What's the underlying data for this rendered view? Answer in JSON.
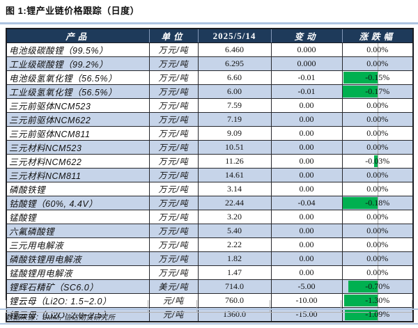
{
  "title": "图 1:锂产业链价格跟踪（日度）",
  "colors": {
    "header_bg": "#1e3a5a",
    "alt_row_blue": "#c6d4e9",
    "negative_bar_green": "#00b050",
    "divider_blue": "#aec4e0",
    "axis_gray": "#a6a6a6"
  },
  "table": {
    "headers": {
      "product": "产品",
      "unit": "单位",
      "date": "2025/5/14",
      "change": "变动",
      "pct": "涨跌幅"
    },
    "rows": [
      {
        "product": "电池级碳酸锂（99.5%）",
        "unit": "万元/吨",
        "price": "6.460",
        "change": "0.000",
        "pct": "0.00%",
        "bar": 0
      },
      {
        "product": "工业级碳酸锂（99.2%）",
        "unit": "万元/吨",
        "price": "6.295",
        "change": "0.000",
        "pct": "0.00%",
        "bar": 0
      },
      {
        "product": "电池级氢氧化锂（56.5%）",
        "unit": "万元/吨",
        "price": "6.60",
        "change": "-0.01",
        "pct": "-0.15%",
        "bar": 0.97
      },
      {
        "product": "工业级氢氧化锂（56.5%）",
        "unit": "万元/吨",
        "price": "6.00",
        "change": "-0.01",
        "pct": "-0.17%",
        "bar": 1
      },
      {
        "product": "三元前驱体NCM523",
        "unit": "万元/吨",
        "price": "7.59",
        "change": "0.00",
        "pct": "0.00%",
        "bar": 0
      },
      {
        "product": "三元前驱体NCM622",
        "unit": "万元/吨",
        "price": "7.19",
        "change": "0.00",
        "pct": "0.00%",
        "bar": 0
      },
      {
        "product": "三元前驱体NCM811",
        "unit": "万元/吨",
        "price": "9.09",
        "change": "0.00",
        "pct": "0.00%",
        "bar": 0
      },
      {
        "product": "三元材料NCM523",
        "unit": "万元/吨",
        "price": "10.51",
        "change": "0.00",
        "pct": "0.00%",
        "bar": 0
      },
      {
        "product": "三元材料NCM622",
        "unit": "万元/吨",
        "price": "11.26",
        "change": "0.00",
        "pct": "-0.03%",
        "bar": 0.09
      },
      {
        "product": "三元材料NCM811",
        "unit": "万元/吨",
        "price": "14.61",
        "change": "0.00",
        "pct": "0.00%",
        "bar": 0
      },
      {
        "product": "磷酸铁锂",
        "unit": "万元/吨",
        "price": "3.14",
        "change": "0.00",
        "pct": "0.00%",
        "bar": 0
      },
      {
        "product": "钴酸锂（60%, 4.4V）",
        "unit": "万元/吨",
        "price": "22.44",
        "change": "-0.04",
        "pct": "-0.18%",
        "bar": 1
      },
      {
        "product": "锰酸锂",
        "unit": "万元/吨",
        "price": "3.20",
        "change": "0.00",
        "pct": "0.00%",
        "bar": 0
      },
      {
        "product": "六氟磷酸锂",
        "unit": "万元/吨",
        "price": "5.40",
        "change": "0.00",
        "pct": "0.00%",
        "bar": 0
      },
      {
        "product": "三元用电解液",
        "unit": "万元/吨",
        "price": "2.22",
        "change": "0.00",
        "pct": "0.00%",
        "bar": 0
      },
      {
        "product": "磷酸铁锂用电解液",
        "unit": "万元/吨",
        "price": "1.82",
        "change": "0.00",
        "pct": "0.00%",
        "bar": 0
      },
      {
        "product": "锰酸锂用电解液",
        "unit": "万元/吨",
        "price": "1.47",
        "change": "0.00",
        "pct": "0.00%",
        "bar": 0
      },
      {
        "product": "锂辉石精矿（SC6.0）",
        "unit": "美元/吨",
        "price": "714.0",
        "change": "-5.00",
        "pct": "-0.70%",
        "bar": 0.84
      },
      {
        "product": "锂云母（Li2O: 1.5~2.0）",
        "unit": "元/吨",
        "price": "760.0",
        "change": "-10.00",
        "pct": "-1.30%",
        "bar": 0.95
      },
      {
        "product": "锂云母（Li2O: 2.0~2.5）",
        "unit": "元/吨",
        "price": "1360.0",
        "change": "-15.00",
        "pct": "-1.09%",
        "bar": 0.93
      }
    ]
  },
  "footer": {
    "source": "数据来源：SMM, 信达期货研究所"
  }
}
